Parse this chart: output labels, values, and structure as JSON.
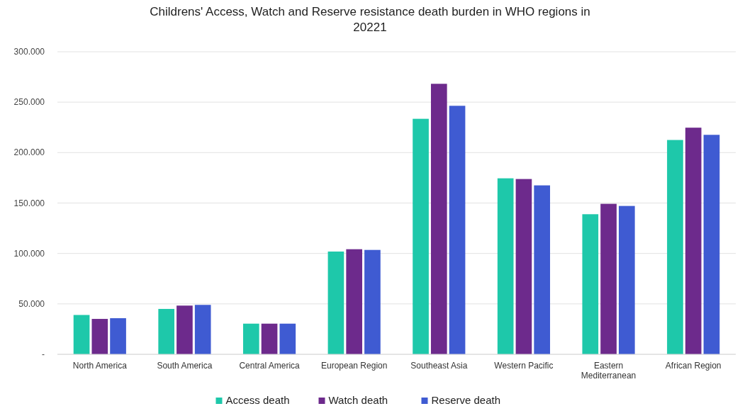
{
  "chart_data": {
    "type": "bar",
    "title": "Childrens' Access, Watch and Reserve resistance death burden in WHO regions in 20221",
    "categories": [
      "North America",
      "South America",
      "Central America",
      "European Region",
      "Southeast Asia",
      "Western Pacific",
      "Eastern Mediterranean",
      "African Region"
    ],
    "series": [
      {
        "name": "Access death",
        "color": "#1ec8aa",
        "values": [
          39000,
          45000,
          30400,
          101900,
          233500,
          174500,
          138900,
          212500
        ]
      },
      {
        "name": "Watch death",
        "color": "#6d2a8c",
        "values": [
          35100,
          48300,
          30400,
          104200,
          268200,
          173800,
          149200,
          224700
        ]
      },
      {
        "name": "Reserve death",
        "color": "#3f5bd2",
        "values": [
          35800,
          49000,
          30400,
          103500,
          246400,
          167500,
          147100,
          217600
        ]
      }
    ],
    "ylim": [
      0,
      300000
    ],
    "yticks": [
      {
        "value": 0,
        "label": "-"
      },
      {
        "value": 50000,
        "label": "50.000"
      },
      {
        "value": 100000,
        "label": "100.000"
      },
      {
        "value": 150000,
        "label": "150.000"
      },
      {
        "value": 200000,
        "label": "200.000"
      },
      {
        "value": 250000,
        "label": "250.000"
      },
      {
        "value": 300000,
        "label": "300.000"
      }
    ],
    "grid": "y",
    "legend": "bottom"
  }
}
